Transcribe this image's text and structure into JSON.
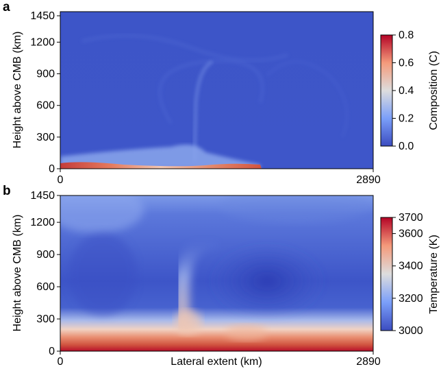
{
  "figure": {
    "panels": [
      {
        "letter": "a",
        "ylabel": "Height above CMB (km)",
        "xlabel": "",
        "xticks": [
          "0",
          "2890"
        ],
        "yticks": [
          "0",
          "300",
          "600",
          "900",
          "1200",
          "1450"
        ],
        "colorbar": {
          "label": "Composition (C)",
          "ticks": [
            "0.0",
            "0.2",
            "0.4",
            "0.6",
            "0.8"
          ],
          "range": [
            0,
            0.8
          ],
          "colors": [
            "#3b4cc0",
            "#f2f0ee",
            "#b40426"
          ]
        }
      },
      {
        "letter": "b",
        "ylabel": "Height above CMB (km)",
        "xlabel": "Lateral extent (km)",
        "xticks": [
          "0",
          "2890"
        ],
        "yticks": [
          "0",
          "300",
          "600",
          "900",
          "1200",
          "1450"
        ],
        "colorbar": {
          "label": "Temperature (K)",
          "ticks": [
            "3000",
            "3200",
            "3400",
            "3600",
            "3700"
          ],
          "range": [
            3000,
            3700
          ],
          "colors": [
            "#3b4cc0",
            "#f2f0ee",
            "#b40426"
          ]
        }
      }
    ]
  },
  "chart_data": [
    {
      "type": "heatmap",
      "title": "",
      "xlabel": "",
      "ylabel": "Height above CMB (km)",
      "xlim": [
        0,
        2890
      ],
      "ylim": [
        0,
        1450
      ],
      "colorbar_label": "Composition (C)",
      "value_range": [
        0,
        0.8
      ],
      "colormap": "coolwarm",
      "features": [
        {
          "x": [
            0,
            300
          ],
          "y": [
            0,
            30
          ],
          "value": 0.8
        },
        {
          "x": [
            300,
            1700
          ],
          "y": [
            0,
            25
          ],
          "value": 0.7
        },
        {
          "x": [
            1350,
            1700
          ],
          "y": [
            0,
            80
          ],
          "value": 0.45
        },
        {
          "x": [
            1160,
            1230
          ],
          "y": [
            0,
            450
          ],
          "value": 0.35
        },
        {
          "x": [
            0,
            1800
          ],
          "y": [
            0,
            120
          ],
          "value": 0.25
        }
      ]
    },
    {
      "type": "heatmap",
      "title": "",
      "xlabel": "Lateral extent (km)",
      "ylabel": "Height above CMB (km)",
      "xlim": [
        0,
        2890
      ],
      "ylim": [
        0,
        1450
      ],
      "colorbar_label": "Temperature (K)",
      "value_range": [
        3000,
        3700
      ],
      "colormap": "coolwarm",
      "features": [
        {
          "x": [
            0,
            2890
          ],
          "y": [
            0,
            60
          ],
          "value": 3700
        },
        {
          "x": [
            0,
            2890
          ],
          "y": [
            60,
            200
          ],
          "value": 3450
        },
        {
          "x": [
            1150,
            1300
          ],
          "y": [
            150,
            700
          ],
          "value": 3300
        },
        {
          "x": [
            1600,
            2400
          ],
          "y": [
            350,
            850
          ],
          "value": 3020
        },
        {
          "x": [
            0,
            2890
          ],
          "y": [
            900,
            1450
          ],
          "value": 3150
        }
      ]
    }
  ]
}
